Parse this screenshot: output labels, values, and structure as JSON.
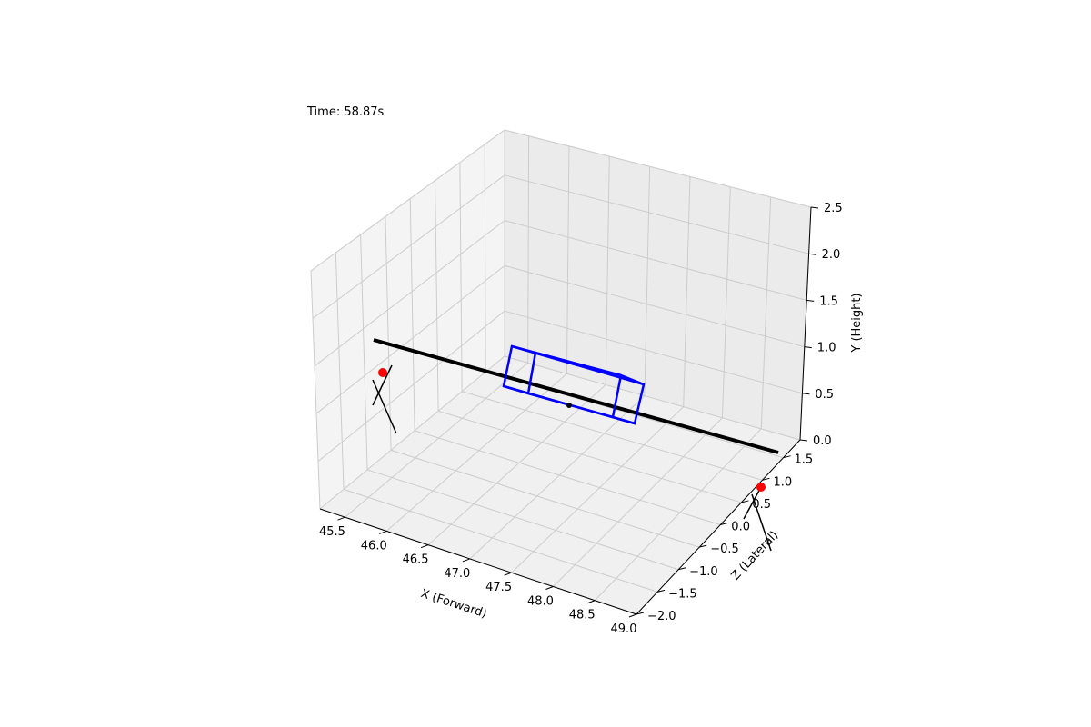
{
  "chart_data": {
    "type": "line3d",
    "title": "",
    "annotation": "Time: 58.87s",
    "xlabel": "X (Forward)",
    "ylabel": "Y (Height)",
    "zlabel": "Z (Lateral)",
    "x_ticks": [
      "45.5",
      "46.0",
      "46.5",
      "47.0",
      "47.5",
      "48.0",
      "48.5",
      "49.0"
    ],
    "z_ticks": [
      "−2.0",
      "−1.5",
      "−1.0",
      "−0.5",
      "0.0",
      "0.5",
      "1.0",
      "1.5"
    ],
    "y_ticks": [
      "0.0",
      "0.5",
      "1.0",
      "1.5",
      "2.0",
      "2.5"
    ],
    "xlim": [
      45.2,
      49.0
    ],
    "zlim": [
      -2.0,
      1.9
    ],
    "ylim": [
      0.0,
      2.5
    ],
    "grid": true,
    "colors": {
      "box": "#0000ff",
      "line": "#000000",
      "marker": "#ff0000",
      "pane": "#f2f2f2",
      "grid": "#c8c8c8"
    }
  }
}
